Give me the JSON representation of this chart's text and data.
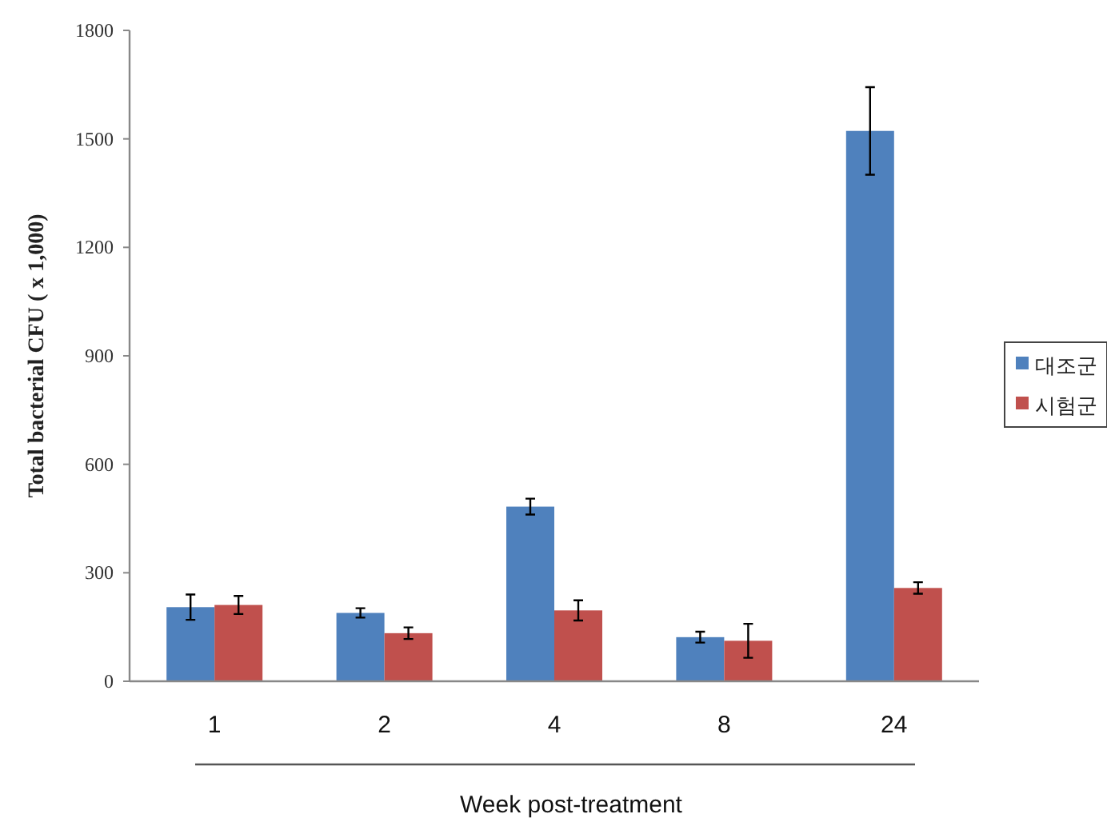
{
  "chart_data": {
    "type": "bar",
    "xlabel": "Week post-treatment",
    "ylabel": "Total  bacterial  CFU ( x 1,000)",
    "categories": [
      "1",
      "2",
      "4",
      "8",
      "24"
    ],
    "series": [
      {
        "name": "대조군",
        "color": "#4f81bd",
        "values": [
          205,
          189,
          483,
          122,
          1522
        ],
        "errors": [
          35,
          13,
          22,
          15,
          121
        ]
      },
      {
        "name": "시험군",
        "color": "#c0504d",
        "values": [
          211,
          133,
          196,
          112,
          258
        ],
        "errors": [
          25,
          16,
          28,
          47,
          16
        ]
      }
    ],
    "ylim": [
      0,
      1800
    ],
    "yticks": [
      0,
      300,
      600,
      900,
      1200,
      1500,
      1800
    ],
    "grid": false,
    "legend": "right"
  }
}
